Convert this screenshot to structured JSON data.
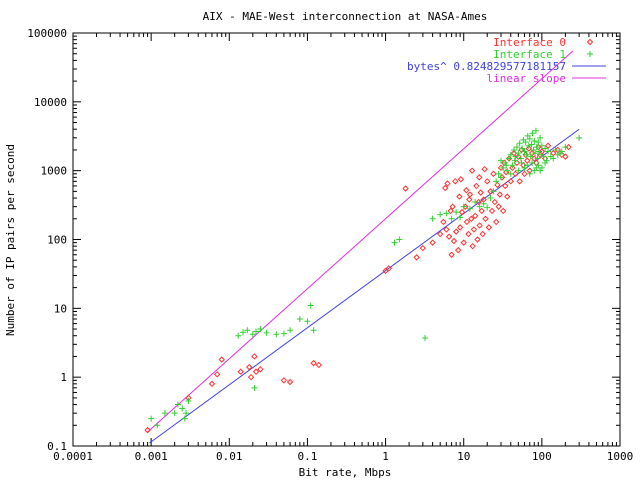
{
  "chart_data": {
    "type": "scatter",
    "title": "AIX - MAE-West interconnection at NASA-Ames",
    "xlabel": "Bit rate, Mbps",
    "ylabel": "Number of IP pairs per second",
    "xscale": "log",
    "yscale": "log",
    "xlim": [
      0.0001,
      1000
    ],
    "ylim": [
      0.1,
      100000
    ],
    "xticks": [
      "0.0001",
      "0.001",
      "0.01",
      "0.1",
      "1",
      "10",
      "100",
      "1000"
    ],
    "yticks": [
      "0.1",
      "1",
      "10",
      "100",
      "1000",
      "10000",
      "100000"
    ],
    "legend_position": "top-right",
    "grid": false,
    "series": [
      {
        "name": "Interface 0",
        "marker": "diamond",
        "color": "#ff3030",
        "points": [
          [
            0.0009,
            0.17
          ],
          [
            0.003,
            0.5
          ],
          [
            0.006,
            0.8
          ],
          [
            0.007,
            1.1
          ],
          [
            0.008,
            1.8
          ],
          [
            0.014,
            1.2
          ],
          [
            0.018,
            1.4
          ],
          [
            0.019,
            1.0
          ],
          [
            0.021,
            2.0
          ],
          [
            0.022,
            1.2
          ],
          [
            0.025,
            1.3
          ],
          [
            0.05,
            0.9
          ],
          [
            0.06,
            0.85
          ],
          [
            0.12,
            1.6
          ],
          [
            0.14,
            1.5
          ],
          [
            1.0,
            35
          ],
          [
            1.1,
            38
          ],
          [
            1.8,
            550
          ],
          [
            2.5,
            55
          ],
          [
            3,
            75
          ],
          [
            4,
            90
          ],
          [
            5,
            120
          ],
          [
            5.5,
            180
          ],
          [
            6,
            140
          ],
          [
            6.5,
            110
          ],
          [
            7,
            60
          ],
          [
            7.5,
            95
          ],
          [
            8,
            130
          ],
          [
            8.5,
            70
          ],
          [
            9,
            150
          ],
          [
            9.5,
            250
          ],
          [
            10,
            90
          ],
          [
            10.5,
            300
          ],
          [
            11,
            180
          ],
          [
            11.5,
            120
          ],
          [
            12,
            450
          ],
          [
            12.5,
            200
          ],
          [
            13,
            80
          ],
          [
            13.5,
            140
          ],
          [
            14,
            220
          ],
          [
            14.5,
            600
          ],
          [
            15,
            100
          ],
          [
            15.5,
            350
          ],
          [
            16,
            160
          ],
          [
            16.5,
            480
          ],
          [
            17,
            260
          ],
          [
            17.5,
            120
          ],
          [
            18,
            380
          ],
          [
            19,
            200
          ],
          [
            20,
            700
          ],
          [
            21,
            150
          ],
          [
            22,
            500
          ],
          [
            23,
            260
          ],
          [
            24,
            900
          ],
          [
            25,
            350
          ],
          [
            26,
            180
          ],
          [
            27,
            620
          ],
          [
            28,
            300
          ],
          [
            29,
            450
          ],
          [
            30,
            1100
          ],
          [
            31,
            800
          ],
          [
            32,
            260
          ],
          [
            33,
            1300
          ],
          [
            34,
            600
          ],
          [
            35,
            950
          ],
          [
            36,
            420
          ],
          [
            38,
            1500
          ],
          [
            40,
            700
          ],
          [
            42,
            1100
          ],
          [
            44,
            1800
          ],
          [
            46,
            900
          ],
          [
            48,
            1300
          ],
          [
            50,
            1600
          ],
          [
            52,
            700
          ],
          [
            55,
            2000
          ],
          [
            58,
            1200
          ],
          [
            60,
            900
          ],
          [
            62,
            1700
          ],
          [
            65,
            1400
          ],
          [
            68,
            2100
          ],
          [
            70,
            1000
          ],
          [
            75,
            1800
          ],
          [
            80,
            1500
          ],
          [
            85,
            1300
          ],
          [
            90,
            2200
          ],
          [
            95,
            1700
          ],
          [
            100,
            1900
          ],
          [
            110,
            1500
          ],
          [
            120,
            2300
          ],
          [
            140,
            1800
          ],
          [
            160,
            2000
          ],
          [
            180,
            1700
          ],
          [
            200,
            1600
          ],
          [
            220,
            2200
          ],
          [
            6.2,
            650
          ],
          [
            7.8,
            700
          ],
          [
            9.2,
            750
          ],
          [
            8.8,
            420
          ],
          [
            10.8,
            520
          ],
          [
            11.8,
            380
          ],
          [
            7.2,
            300
          ],
          [
            6.8,
            260
          ],
          [
            12.8,
            1000
          ],
          [
            5.8,
            560
          ],
          [
            15.8,
            800
          ],
          [
            18.5,
            1050
          ]
        ]
      },
      {
        "name": "Interface 1",
        "marker": "plus",
        "color": "#30d030",
        "points": [
          [
            0.001,
            0.25
          ],
          [
            0.0012,
            0.2
          ],
          [
            0.0015,
            0.3
          ],
          [
            0.002,
            0.3
          ],
          [
            0.0022,
            0.4
          ],
          [
            0.0025,
            0.35
          ],
          [
            0.0027,
            0.25
          ],
          [
            0.003,
            0.45
          ],
          [
            0.0028,
            0.3
          ],
          [
            0.015,
            4.5
          ],
          [
            0.017,
            4.8
          ],
          [
            0.02,
            4.2
          ],
          [
            0.022,
            4.6
          ],
          [
            0.025,
            5.0
          ],
          [
            0.03,
            4.4
          ],
          [
            0.04,
            4.2
          ],
          [
            0.05,
            4.3
          ],
          [
            0.06,
            4.8
          ],
          [
            0.08,
            7.0
          ],
          [
            0.1,
            6.5
          ],
          [
            0.11,
            11
          ],
          [
            0.12,
            4.8
          ],
          [
            0.013,
            4.0
          ],
          [
            0.021,
            0.7
          ],
          [
            1.3,
            90
          ],
          [
            1.5,
            100
          ],
          [
            3.2,
            3.7
          ],
          [
            4,
            200
          ],
          [
            5,
            230
          ],
          [
            6,
            240
          ],
          [
            7,
            200
          ],
          [
            8,
            250
          ],
          [
            9,
            210
          ],
          [
            10,
            300
          ],
          [
            12,
            280
          ],
          [
            14,
            350
          ],
          [
            16,
            300
          ],
          [
            18,
            330
          ],
          [
            20,
            290
          ],
          [
            22,
            400
          ],
          [
            24,
            500
          ],
          [
            26,
            700
          ],
          [
            28,
            900
          ],
          [
            30,
            800
          ],
          [
            32,
            1100
          ],
          [
            34,
            1300
          ],
          [
            36,
            1000
          ],
          [
            38,
            1500
          ],
          [
            40,
            1700
          ],
          [
            42,
            1200
          ],
          [
            44,
            2000
          ],
          [
            46,
            1600
          ],
          [
            48,
            2200
          ],
          [
            50,
            1800
          ],
          [
            52,
            2500
          ],
          [
            54,
            1500
          ],
          [
            56,
            2100
          ],
          [
            58,
            2800
          ],
          [
            60,
            1900
          ],
          [
            62,
            2600
          ],
          [
            64,
            1700
          ],
          [
            66,
            3200
          ],
          [
            68,
            2300
          ],
          [
            70,
            2900
          ],
          [
            72,
            1600
          ],
          [
            74,
            2400
          ],
          [
            76,
            3500
          ],
          [
            78,
            2000
          ],
          [
            80,
            2700
          ],
          [
            82,
            1800
          ],
          [
            84,
            3800
          ],
          [
            86,
            2200
          ],
          [
            88,
            1500
          ],
          [
            90,
            2600
          ],
          [
            92,
            1900
          ],
          [
            95,
            3000
          ],
          [
            98,
            1700
          ],
          [
            100,
            2300
          ],
          [
            105,
            1600
          ],
          [
            110,
            2100
          ],
          [
            115,
            1400
          ],
          [
            120,
            1900
          ],
          [
            130,
            1600
          ],
          [
            140,
            1500
          ],
          [
            150,
            2000
          ],
          [
            160,
            1700
          ],
          [
            170,
            1800
          ],
          [
            180,
            1900
          ],
          [
            200,
            2200
          ],
          [
            300,
            3000
          ],
          [
            30,
            1400
          ],
          [
            35,
            1200
          ],
          [
            45,
            1400
          ],
          [
            55,
            1300
          ],
          [
            65,
            1200
          ],
          [
            75,
            1300
          ],
          [
            85,
            1100
          ],
          [
            95,
            1000
          ],
          [
            40,
            900
          ],
          [
            50,
            1000
          ],
          [
            60,
            1100
          ],
          [
            70,
            900
          ],
          [
            80,
            1000
          ],
          [
            90,
            1200
          ],
          [
            100,
            1100
          ],
          [
            110,
            1300
          ]
        ]
      },
      {
        "name": "bytes^ 0.824829577181157",
        "type": "line",
        "color": "#4040e0",
        "points": [
          [
            0.00095,
            0.11
          ],
          [
            300,
            4000
          ]
        ]
      },
      {
        "name": "linear slope",
        "type": "line",
        "color": "#e030e0",
        "points": [
          [
            0.0009,
            0.16
          ],
          [
            250,
            55000
          ]
        ]
      }
    ]
  }
}
